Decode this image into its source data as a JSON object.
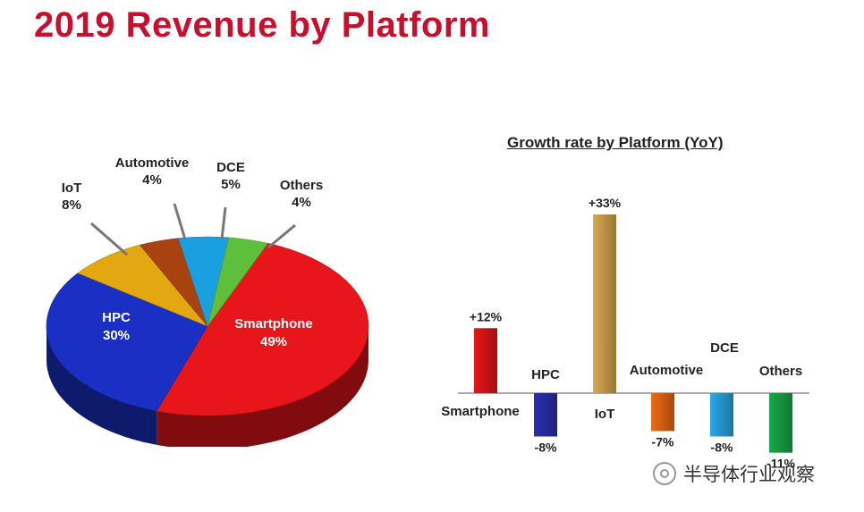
{
  "page": {
    "title": "2019 Revenue by Platform",
    "watermark": "半导体行业观察"
  },
  "chart_data": [
    {
      "type": "pie",
      "title": "",
      "slices": [
        {
          "label": "Smartphone",
          "value": 49,
          "display": "49%",
          "color": "#e8161b"
        },
        {
          "label": "HPC",
          "value": 30,
          "display": "30%",
          "color": "#1a2fc4"
        },
        {
          "label": "IoT",
          "value": 8,
          "display": "8%",
          "color": "#e3a70f"
        },
        {
          "label": "Automotive",
          "value": 4,
          "display": "4%",
          "color": "#a8420e"
        },
        {
          "label": "DCE",
          "value": 5,
          "display": "5%",
          "color": "#1a9fe0"
        },
        {
          "label": "Others",
          "value": 4,
          "display": "4%",
          "color": "#5ec03a"
        }
      ]
    },
    {
      "type": "bar",
      "title": "Growth rate by Platform (YoY)",
      "categories": [
        "Smartphone",
        "HPC",
        "IoT",
        "Automotive",
        "DCE",
        "Others"
      ],
      "values": [
        12,
        -8,
        33,
        -7,
        -8,
        -11
      ],
      "value_labels": [
        "+12%",
        "-8%",
        "+33%",
        "-7%",
        "-8%",
        "-11%"
      ],
      "colors": [
        "#e8161b",
        "#2b2fb0",
        "#d9a94e",
        "#ee6a14",
        "#28a9e6",
        "#1aa84a"
      ],
      "xlabel": "",
      "ylabel": "",
      "ylim": [
        -12,
        35
      ],
      "grid": false
    }
  ]
}
